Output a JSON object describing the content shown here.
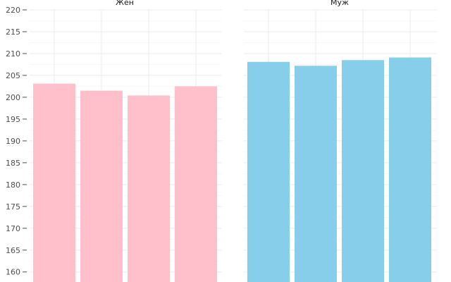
{
  "chart_data": {
    "type": "bar",
    "ylim": [
      157.7,
      220
    ],
    "yticks": [
      160,
      165,
      170,
      175,
      180,
      185,
      190,
      195,
      200,
      205,
      210,
      215,
      220
    ],
    "grid": true,
    "facets": [
      {
        "title": "Жен",
        "color": "#ffc0cb",
        "values": [
          203.1,
          201.5,
          200.4,
          202.5
        ]
      },
      {
        "title": "Муж",
        "color": "#87ceeb",
        "values": [
          208.1,
          207.2,
          208.5,
          209.1
        ]
      }
    ]
  }
}
